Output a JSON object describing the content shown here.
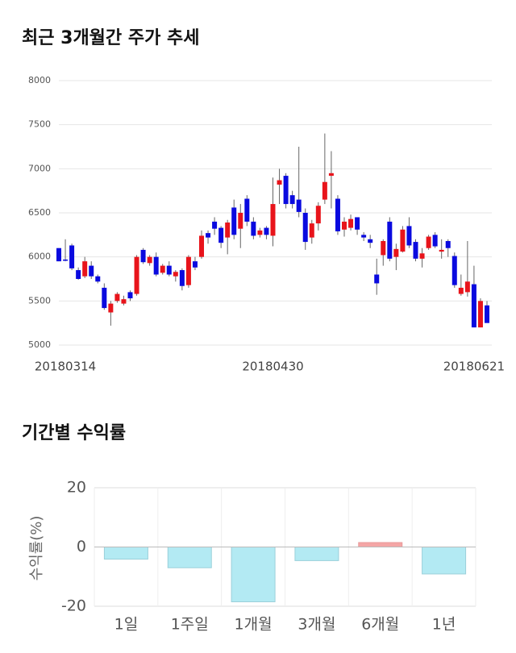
{
  "chart_data": [
    {
      "type": "candlestick",
      "title": "최근 3개월간 주가 추세",
      "categories": [
        null,
        "20180314",
        null,
        null,
        null,
        null,
        null,
        null,
        null,
        null,
        null,
        null,
        null,
        null,
        null,
        null,
        null,
        null,
        null,
        null,
        null,
        null,
        null,
        null,
        null,
        null,
        null,
        null,
        null,
        null,
        null,
        null,
        null,
        "20180430",
        null,
        null,
        null,
        null,
        null,
        null,
        null,
        null,
        null,
        null,
        null,
        null,
        null,
        null,
        null,
        null,
        null,
        null,
        null,
        null,
        null,
        null,
        null,
        null,
        null,
        null,
        null,
        null,
        null,
        null,
        "20180621",
        null,
        null
      ],
      "open": [
        6100,
        5970,
        6130,
        5850,
        5780,
        5900,
        5780,
        5650,
        5370,
        5500,
        5470,
        5600,
        5580,
        6080,
        5930,
        6000,
        5820,
        5900,
        5780,
        5850,
        5680,
        5950,
        6000,
        6270,
        6400,
        6330,
        6220,
        6560,
        6320,
        6660,
        6400,
        6250,
        6330,
        6240,
        6820,
        6920,
        6700,
        6650,
        6500,
        6220,
        6380,
        6650,
        6920,
        6660,
        6310,
        6330,
        6450,
        6250,
        6200,
        5800,
        6020,
        6400,
        6000,
        6060,
        6350,
        6170,
        5980,
        6100,
        6250,
        6060,
        6180,
        6010,
        5580,
        5600,
        5690,
        5200,
        5450
      ],
      "high": [
        6100,
        6200,
        6150,
        5880,
        6000,
        5950,
        5800,
        5700,
        5500,
        5600,
        5560,
        5620,
        6020,
        6100,
        6020,
        6050,
        5920,
        5950,
        5850,
        5870,
        6020,
        6000,
        6300,
        6300,
        6450,
        6350,
        6420,
        6650,
        6600,
        6700,
        6450,
        6330,
        6350,
        6900,
        7000,
        6950,
        6750,
        7250,
        6550,
        6420,
        6620,
        7400,
        7200,
        6700,
        6450,
        6480,
        6450,
        6280,
        6250,
        5980,
        6200,
        6450,
        6150,
        6350,
        6450,
        6200,
        6100,
        6250,
        6280,
        6200,
        6200,
        6050,
        5800,
        6180,
        5900,
        5530,
        5500
      ],
      "low": [
        5950,
        5950,
        5850,
        5740,
        5760,
        5750,
        5700,
        5400,
        5220,
        5480,
        5450,
        5500,
        5560,
        5920,
        5900,
        5780,
        5800,
        5780,
        5720,
        5620,
        5650,
        5850,
        5980,
        6150,
        6250,
        6100,
        6030,
        6200,
        6100,
        6350,
        6200,
        6220,
        6200,
        6120,
        6600,
        6550,
        6550,
        6450,
        6080,
        6150,
        6300,
        6600,
        6550,
        6250,
        6230,
        6300,
        6250,
        6180,
        6100,
        5570,
        5900,
        5950,
        5850,
        6050,
        6100,
        5950,
        5880,
        6080,
        6100,
        5980,
        6000,
        5650,
        5560,
        5550,
        5200,
        5200,
        5250
      ],
      "close": [
        5950,
        5960,
        5870,
        5750,
        5950,
        5780,
        5720,
        5420,
        5470,
        5580,
        5520,
        5530,
        6000,
        5940,
        6000,
        5800,
        5900,
        5800,
        5830,
        5670,
        6000,
        5880,
        6240,
        6220,
        6320,
        6160,
        6390,
        6250,
        6500,
        6400,
        6240,
        6300,
        6250,
        6600,
        6870,
        6600,
        6600,
        6510,
        6170,
        6380,
        6580,
        6850,
        6950,
        6290,
        6400,
        6430,
        6310,
        6220,
        6160,
        5700,
        6180,
        5980,
        6090,
        6310,
        6130,
        5980,
        6040,
        6230,
        6120,
        6080,
        6100,
        5680,
        5650,
        5720,
        5200,
        5500,
        5250
      ],
      "up_color": "#e8141b",
      "down_color": "#0a0adf",
      "ylim": [
        5000,
        8000
      ],
      "yticks": [
        5000,
        5500,
        6000,
        6500,
        7000,
        7500,
        8000
      ],
      "grid": true
    },
    {
      "type": "bar",
      "title": "기간별 수익률",
      "y_label": "수익률(%)",
      "categories": [
        "1일",
        "1주일",
        "1개월",
        "3개월",
        "6개월",
        "1년"
      ],
      "values": [
        -4.1,
        -7.0,
        -18.5,
        -4.6,
        1.5,
        -9.1
      ],
      "positive_color": "#f4a6a6",
      "negative_color": "#b3eaf3",
      "ylim": [
        -20,
        20
      ],
      "yticks": [
        -20,
        0,
        20
      ],
      "grid": true
    }
  ]
}
